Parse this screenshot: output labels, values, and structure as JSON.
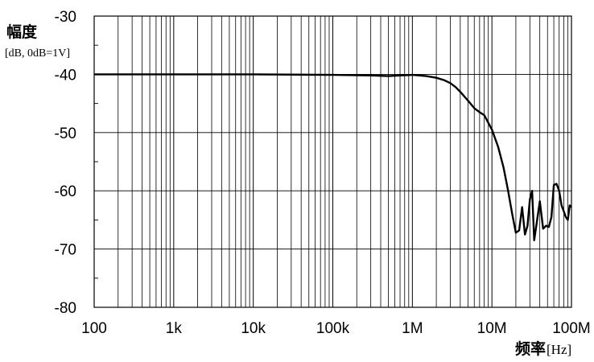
{
  "chart_data": {
    "type": "line",
    "title": "",
    "ylabel": "幅度",
    "ylabel_unit": "[dB, 0dB=1V]",
    "xlabel": "频率",
    "xlabel_unit": "[Hz]",
    "x_scale": "log",
    "xlim": [
      100,
      100000000
    ],
    "ylim": [
      -80,
      -30
    ],
    "grid": true,
    "x_tick_values": [
      100,
      1000,
      10000,
      100000,
      1000000,
      10000000,
      100000000
    ],
    "x_tick_labels": [
      "100",
      "1k",
      "10k",
      "100k",
      "1M",
      "10M",
      "100M"
    ],
    "y_tick_values": [
      -30,
      -40,
      -50,
      -60,
      -70,
      -80
    ],
    "y_tick_labels": [
      "-30",
      "-40",
      "-50",
      "-60",
      "-70",
      "-80"
    ],
    "series": [
      {
        "color": "#000000",
        "x": [
          100,
          1000,
          10000,
          100000,
          300000,
          500000,
          700000,
          1000000,
          1500000,
          2000000,
          2500000,
          3000000,
          3500000,
          4000000,
          5000000,
          6000000,
          7000000,
          8000000,
          10000000,
          12000000,
          14000000,
          16000000,
          18000000,
          20000000,
          22000000,
          24000000,
          26000000,
          28000000,
          30000000,
          32000000,
          34000000,
          36000000,
          40000000,
          44000000,
          48000000,
          52000000,
          56000000,
          60000000,
          65000000,
          70000000,
          75000000,
          80000000,
          85000000,
          90000000,
          95000000,
          100000000
        ],
        "y": [
          -40,
          -40,
          -40,
          -40.1,
          -40.2,
          -40.3,
          -40.2,
          -40.1,
          -40.3,
          -40.6,
          -41.0,
          -41.5,
          -42.2,
          -43.0,
          -44.5,
          -45.8,
          -46.5,
          -47.0,
          -49.5,
          -52.5,
          -56.0,
          -60.0,
          -64.0,
          -67.2,
          -66.8,
          -62.8,
          -67.5,
          -66.0,
          -61.5,
          -60.0,
          -68.5,
          -66.2,
          -61.8,
          -66.5,
          -66.0,
          -66.2,
          -64.5,
          -59.0,
          -58.8,
          -60.0,
          -62.5,
          -63.5,
          -64.5,
          -65.0,
          -62.5,
          -62.8
        ]
      }
    ]
  }
}
